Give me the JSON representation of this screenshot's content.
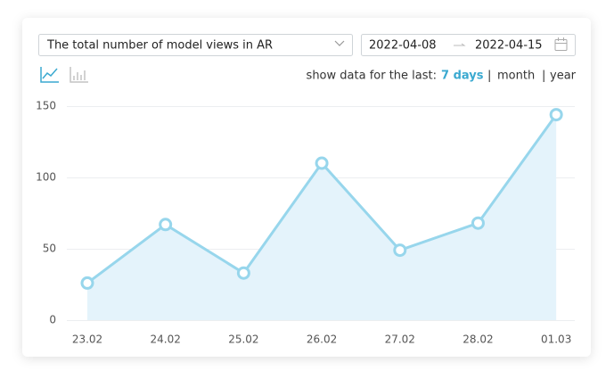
{
  "controls": {
    "metric": "The total number of model views in AR",
    "date_from": "2022-04-08",
    "date_to": "2022-04-15",
    "period_prefix": "show data for the last:",
    "periods": [
      "7 days",
      "month",
      "year"
    ],
    "separator": "|"
  },
  "chart_data": {
    "type": "line",
    "categories": [
      "23.02",
      "24.02",
      "25.02",
      "26.02",
      "27.02",
      "28.02",
      "01.03"
    ],
    "values": [
      26,
      67,
      33,
      110,
      49,
      68,
      144
    ],
    "color": "#97d6ec",
    "area_color": "#e4f3fb",
    "ylim": [
      0,
      150
    ],
    "yticks": [
      0,
      50,
      100,
      150
    ],
    "grid": true
  }
}
